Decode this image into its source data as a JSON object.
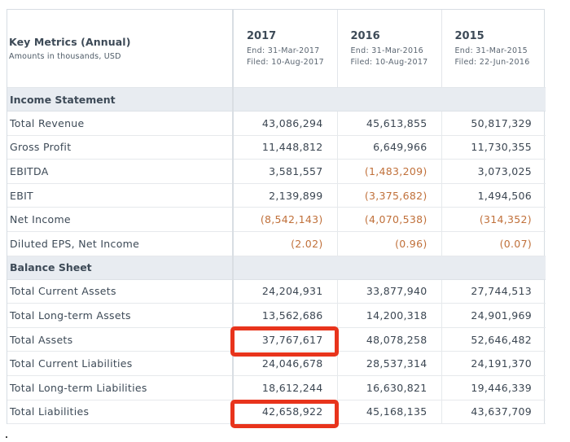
{
  "header": {
    "title": "Key Metrics (Annual)",
    "subtitle": "Amounts in thousands, USD"
  },
  "periods": [
    {
      "year": "2017",
      "end": "End: 31-Mar-2017",
      "filed": "Filed: 10-Aug-2017"
    },
    {
      "year": "2016",
      "end": "End: 31-Mar-2016",
      "filed": "Filed: 10-Aug-2017"
    },
    {
      "year": "2015",
      "end": "End: 31-Mar-2015",
      "filed": "Filed: 22-Jun-2016"
    }
  ],
  "sections": [
    {
      "title": "Income Statement",
      "rows": [
        {
          "label": "Total Revenue",
          "values": [
            "43,086,294",
            "45,613,855",
            "50,817,329"
          ],
          "negative": [
            false,
            false,
            false
          ]
        },
        {
          "label": "Gross Profit",
          "values": [
            "11,448,812",
            "6,649,966",
            "11,730,355"
          ],
          "negative": [
            false,
            false,
            false
          ]
        },
        {
          "label": "EBITDA",
          "values": [
            "3,581,557",
            "(1,483,209)",
            "3,073,025"
          ],
          "negative": [
            false,
            true,
            false
          ]
        },
        {
          "label": "EBIT",
          "values": [
            "2,139,899",
            "(3,375,682)",
            "1,494,506"
          ],
          "negative": [
            false,
            true,
            false
          ]
        },
        {
          "label": "Net Income",
          "values": [
            "(8,542,143)",
            "(4,070,538)",
            "(314,352)"
          ],
          "negative": [
            true,
            true,
            true
          ]
        },
        {
          "label": "Diluted EPS, Net Income",
          "values": [
            "(2.02)",
            "(0.96)",
            "(0.07)"
          ],
          "negative": [
            true,
            true,
            true
          ]
        }
      ]
    },
    {
      "title": "Balance Sheet",
      "rows": [
        {
          "label": "Total Current Assets",
          "values": [
            "24,204,931",
            "33,877,940",
            "27,744,513"
          ],
          "negative": [
            false,
            false,
            false
          ]
        },
        {
          "label": "Total Long-term Assets",
          "values": [
            "13,562,686",
            "14,200,318",
            "24,901,969"
          ],
          "negative": [
            false,
            false,
            false
          ]
        },
        {
          "label": "Total Assets",
          "values": [
            "37,767,617",
            "48,078,258",
            "52,646,482"
          ],
          "negative": [
            false,
            false,
            false
          ]
        },
        {
          "label": "Total Current Liabilities",
          "values": [
            "24,046,678",
            "28,537,314",
            "24,191,370"
          ],
          "negative": [
            false,
            false,
            false
          ]
        },
        {
          "label": "Total Long-term Liabilities",
          "values": [
            "18,612,244",
            "16,630,821",
            "19,446,339"
          ],
          "negative": [
            false,
            false,
            false
          ]
        },
        {
          "label": "Total Liabilities",
          "values": [
            "42,658,922",
            "45,168,135",
            "43,637,709"
          ],
          "negative": [
            false,
            false,
            false
          ]
        }
      ]
    }
  ],
  "colors": {
    "negative": "#c0703a",
    "section_bg": "#e8ecf1",
    "highlight": "#e8341c"
  }
}
